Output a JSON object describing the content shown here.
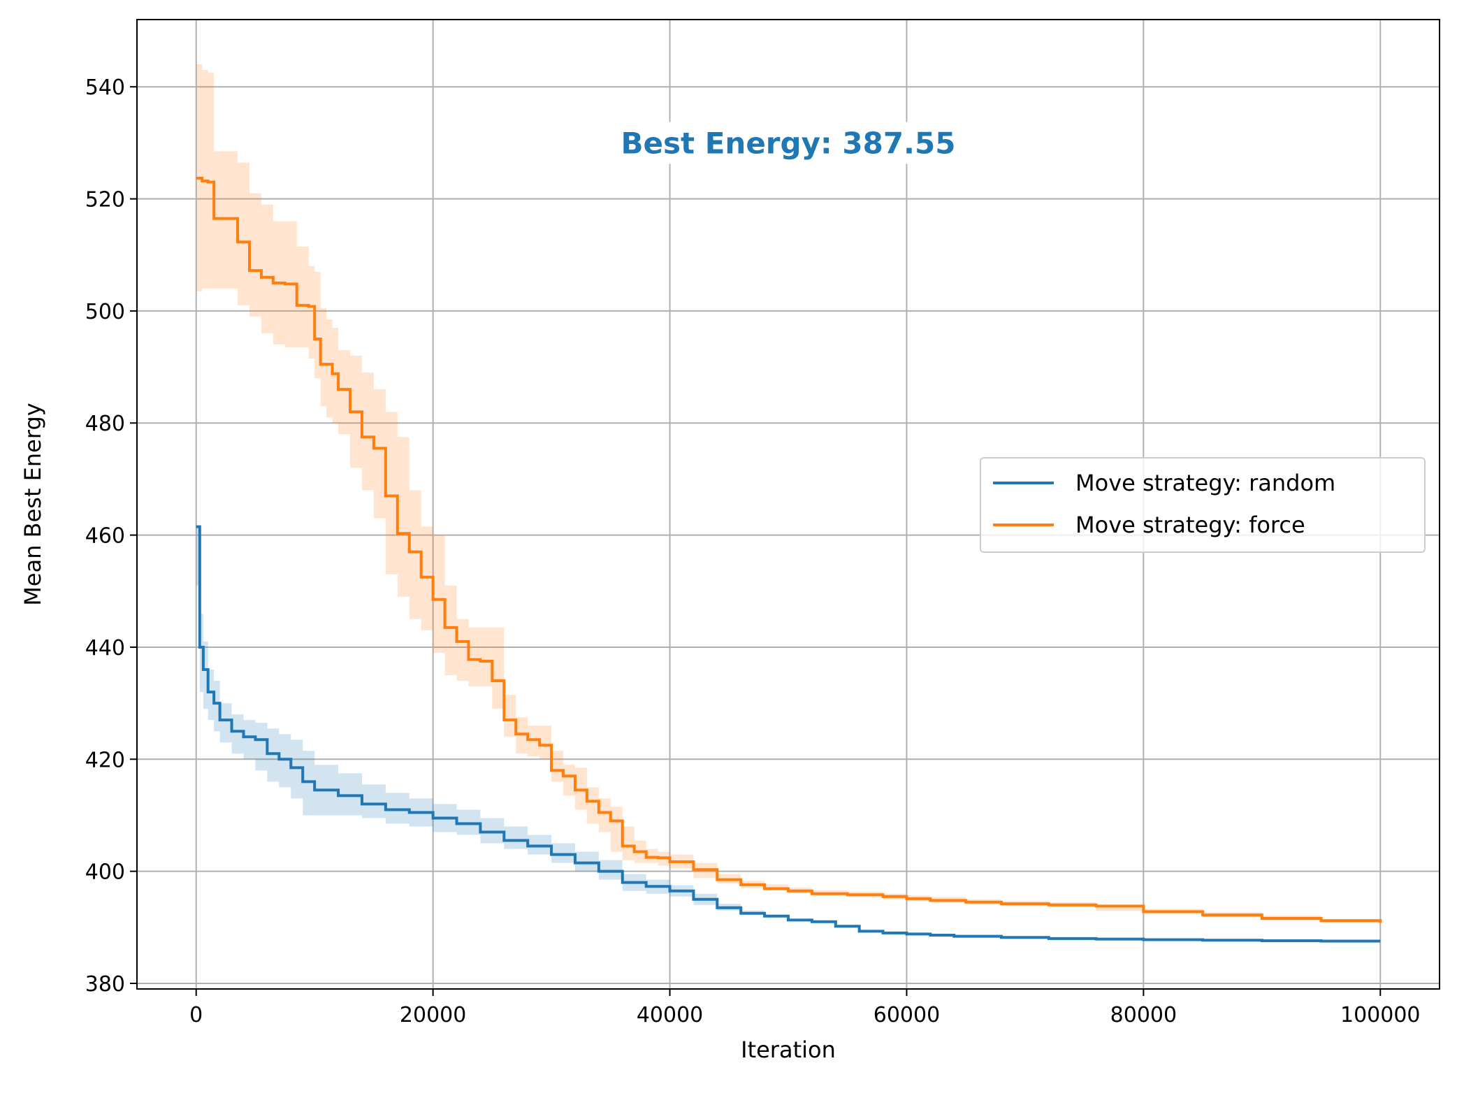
{
  "chart_data": {
    "type": "line",
    "title": "",
    "xlabel": "Iteration",
    "ylabel": "Mean Best Energy",
    "xlim": [
      -5000,
      105000
    ],
    "ylim": [
      379,
      552
    ],
    "xticks": [
      0,
      20000,
      40000,
      60000,
      80000,
      100000
    ],
    "yticks": [
      380,
      400,
      420,
      440,
      460,
      480,
      500,
      520,
      540
    ],
    "grid": true,
    "legend_position": "center-right",
    "annotation": {
      "text": "Best Energy: 387.55",
      "x": 50000,
      "y": 530,
      "color": "#1f77b4"
    },
    "series": [
      {
        "name": "Move strategy: random",
        "color": "#1f77b4",
        "x": [
          0,
          300,
          600,
          1000,
          1500,
          2000,
          3000,
          4000,
          5000,
          6000,
          7000,
          8000,
          9000,
          10000,
          12000,
          14000,
          16000,
          18000,
          20000,
          22000,
          24000,
          26000,
          28000,
          30000,
          32000,
          34000,
          36000,
          38000,
          40000,
          42000,
          44000,
          46000,
          48000,
          50000,
          52000,
          54000,
          56000,
          58000,
          60000,
          62000,
          64000,
          68000,
          72000,
          76000,
          80000,
          85000,
          90000,
          95000,
          100000
        ],
        "y": [
          461.5,
          440,
          436,
          432,
          430,
          427,
          425,
          424,
          423.5,
          421,
          420,
          418.5,
          416,
          414.5,
          413.5,
          412,
          411,
          410.5,
          409.5,
          408.5,
          407,
          405.5,
          404.5,
          403,
          401.5,
          400,
          398,
          397.3,
          396.5,
          395,
          393.5,
          392.5,
          392,
          391.3,
          391,
          390.2,
          389.3,
          389,
          388.8,
          388.6,
          388.4,
          388.2,
          388,
          387.9,
          387.8,
          387.7,
          387.6,
          387.55,
          387.55
        ],
        "lower": [
          451,
          432,
          429,
          427,
          425,
          423,
          421,
          420,
          418,
          416,
          415,
          413,
          410,
          410,
          410,
          409.5,
          408.5,
          408,
          407,
          406.5,
          405,
          404,
          403,
          401.5,
          400,
          398.5,
          396.5,
          396,
          395.5,
          394,
          393,
          392.3,
          391.8,
          391.2,
          390.9,
          390.1,
          389.2,
          388.9,
          388.7,
          388.5,
          388.3,
          388.1,
          387.9,
          387.8,
          387.7,
          387.6,
          387.5,
          387.5,
          387.5
        ],
        "upper": [
          461.5,
          446,
          441,
          436,
          434,
          430,
          428,
          427,
          426.5,
          425.5,
          424.5,
          423.5,
          421.5,
          419,
          417.5,
          415.5,
          414,
          413,
          412,
          411,
          409.5,
          408,
          406.5,
          405,
          403.5,
          402,
          399.5,
          398.5,
          397.5,
          396,
          394.2,
          393,
          392.3,
          391.5,
          391.1,
          390.3,
          389.4,
          389.1,
          388.9,
          388.7,
          388.5,
          388.3,
          388.1,
          388,
          387.9,
          387.8,
          387.7,
          387.6,
          387.6
        ]
      },
      {
        "name": "Move strategy: force",
        "color": "#ff7f0e",
        "x": [
          0,
          500,
          1000,
          1500,
          2500,
          3500,
          4500,
          5500,
          6500,
          7500,
          8500,
          9500,
          10000,
          10500,
          11000,
          11500,
          12000,
          13000,
          14000,
          15000,
          16000,
          17000,
          18000,
          19000,
          20000,
          21000,
          22000,
          23000,
          24000,
          25000,
          26000,
          27000,
          28000,
          29000,
          30000,
          31000,
          32000,
          33000,
          34000,
          35000,
          36000,
          37000,
          38000,
          39000,
          40000,
          42000,
          44000,
          46000,
          48000,
          50000,
          52000,
          55000,
          58000,
          60000,
          62000,
          65000,
          68000,
          72000,
          76000,
          80000,
          85000,
          90000,
          95000,
          100000
        ],
        "y": [
          523.7,
          523.2,
          523,
          516.5,
          516.5,
          512.3,
          507.2,
          506,
          505,
          504.8,
          501,
          500.8,
          495,
          490.5,
          490.5,
          488.8,
          486,
          482,
          477.5,
          475.5,
          467,
          460.3,
          457,
          452.5,
          448.5,
          443.5,
          441,
          437.8,
          437.5,
          434,
          427,
          424.5,
          423.5,
          422.5,
          418,
          417,
          414.5,
          412.5,
          410.5,
          409,
          404.5,
          403.5,
          402.5,
          402.4,
          401.7,
          400.3,
          398.5,
          397.6,
          396.9,
          396.5,
          396,
          395.8,
          395.5,
          395.1,
          394.8,
          394.5,
          394.2,
          394,
          393.8,
          392.8,
          392.2,
          391.6,
          391.2,
          390.8
        ],
        "lower": [
          503.5,
          504,
          504,
          504,
          504,
          501,
          499,
          496,
          494,
          493.5,
          493.5,
          491.5,
          488,
          483,
          481,
          480,
          478,
          472,
          468,
          463,
          453,
          449,
          445,
          443,
          439,
          435,
          434,
          433,
          433,
          429,
          424,
          421,
          420.5,
          420,
          416,
          413.5,
          411,
          408.5,
          407,
          403.5,
          402,
          401.5,
          401.5,
          401,
          400.5,
          398.8,
          397.8,
          397,
          396.6,
          396.1,
          395.7,
          395.4,
          395,
          394.6,
          394.4,
          394.1,
          393.8,
          393.6,
          392.9,
          392.4,
          391.8,
          391.2,
          390.8,
          390.6
        ],
        "upper": [
          544,
          543,
          542.5,
          528.5,
          528.5,
          526.5,
          521,
          519,
          516,
          516,
          511.5,
          508,
          507,
          500.5,
          498.5,
          497,
          493,
          492,
          489,
          486,
          482,
          477.5,
          468,
          461.5,
          460,
          451,
          445,
          443.5,
          443.5,
          443.5,
          431.5,
          427.5,
          426,
          426,
          421.5,
          419,
          418.5,
          415,
          413,
          411.5,
          408,
          405.5,
          404,
          403.5,
          403,
          401.5,
          399.5,
          398.3,
          397.7,
          397.1,
          396.6,
          396.3,
          396,
          395.7,
          395.4,
          395,
          394.7,
          394.5,
          394,
          393.3,
          392.7,
          392.1,
          391.5,
          391.2
        ]
      }
    ]
  }
}
